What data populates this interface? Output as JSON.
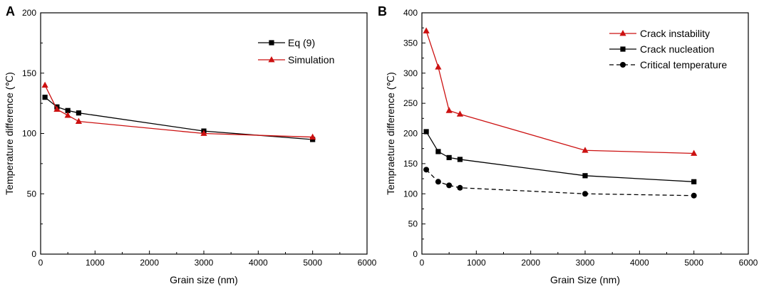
{
  "chart_data": [
    {
      "type": "line",
      "panel_label": "A",
      "xlabel": "Grain size (nm)",
      "ylabel": "Temperature difference (℃)",
      "xlim": [
        0,
        6000
      ],
      "ylim": [
        0,
        200
      ],
      "xticks": [
        0,
        1000,
        2000,
        3000,
        4000,
        5000,
        6000
      ],
      "yticks": [
        0,
        50,
        100,
        150,
        200
      ],
      "legend_position": "top-right",
      "series": [
        {
          "name": "Eq (9)",
          "color": "#000000",
          "marker": "square",
          "dash": "solid",
          "x": [
            80,
            300,
            500,
            700,
            3000,
            5000
          ],
          "y": [
            130,
            122,
            119,
            117,
            102,
            95
          ]
        },
        {
          "name": "Simulation",
          "color": "#cc1111",
          "marker": "triangle",
          "dash": "solid",
          "x": [
            80,
            300,
            500,
            700,
            3000,
            5000
          ],
          "y": [
            140,
            120,
            115,
            110,
            100,
            97
          ]
        }
      ]
    },
    {
      "type": "line",
      "panel_label": "B",
      "xlabel": "Grain Size (nm)",
      "ylabel": "Tempraeture difference (℃)",
      "xlim": [
        0,
        6000
      ],
      "ylim": [
        0,
        400
      ],
      "xticks": [
        0,
        1000,
        2000,
        3000,
        4000,
        5000,
        6000
      ],
      "yticks": [
        0,
        50,
        100,
        150,
        200,
        250,
        300,
        350,
        400
      ],
      "legend_position": "top-right",
      "series": [
        {
          "name": "Crack instability",
          "color": "#cc1111",
          "marker": "triangle",
          "dash": "solid",
          "x": [
            80,
            300,
            500,
            700,
            3000,
            5000
          ],
          "y": [
            370,
            310,
            238,
            232,
            172,
            167
          ]
        },
        {
          "name": "Crack nucleation",
          "color": "#000000",
          "marker": "square",
          "dash": "solid",
          "x": [
            80,
            300,
            500,
            700,
            3000,
            5000
          ],
          "y": [
            203,
            170,
            160,
            157,
            130,
            120
          ]
        },
        {
          "name": "Critical temperature",
          "color": "#000000",
          "marker": "circle",
          "dash": "dashed",
          "x": [
            80,
            300,
            500,
            700,
            3000,
            5000
          ],
          "y": [
            140,
            120,
            114,
            110,
            100,
            97
          ]
        }
      ]
    }
  ]
}
